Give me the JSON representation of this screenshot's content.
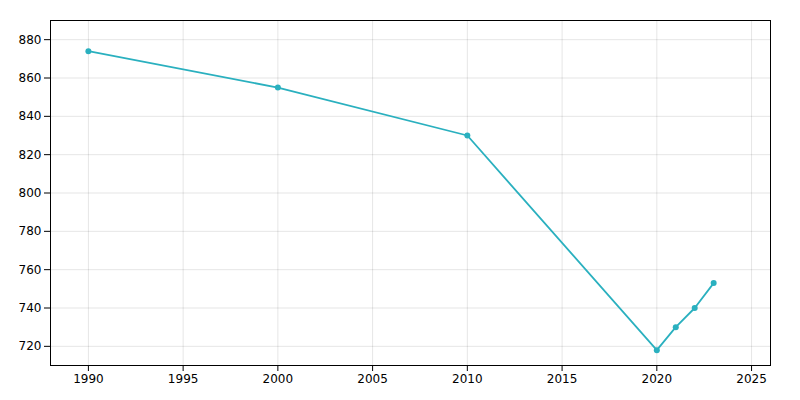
{
  "chart_data": {
    "type": "line",
    "x": [
      1990,
      2000,
      2010,
      2020,
      2021,
      2022,
      2023
    ],
    "values": [
      874,
      855,
      830,
      718,
      730,
      740,
      753
    ],
    "color": "#2ab0bf",
    "marker": "circle",
    "xlim": [
      1988,
      2026
    ],
    "ylim": [
      710,
      890
    ],
    "xticks": [
      1990,
      1995,
      2000,
      2005,
      2010,
      2015,
      2020,
      2025
    ],
    "yticks": [
      720,
      740,
      760,
      780,
      800,
      820,
      840,
      860,
      880
    ],
    "grid": true
  }
}
